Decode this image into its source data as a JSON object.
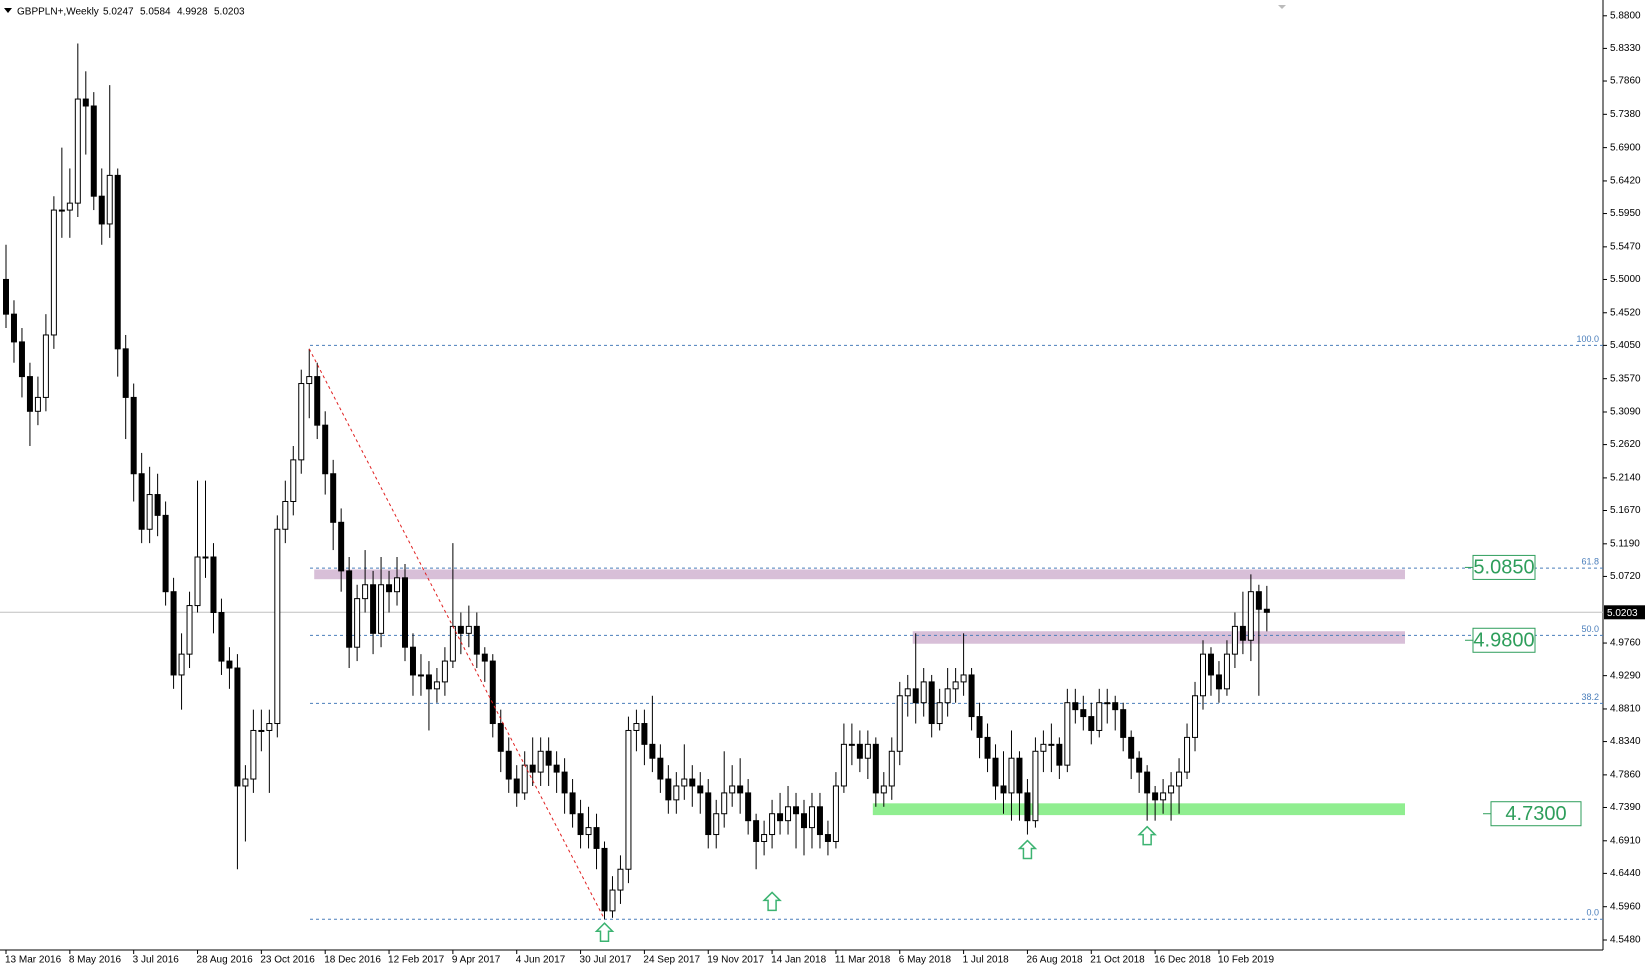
{
  "chart_data": {
    "type": "candlestick",
    "title": "GBPPLN+,Weekly",
    "categories": [
      "13 Mar 2016",
      null,
      null,
      null,
      null,
      null,
      null,
      null,
      "8 May 2016",
      null,
      null,
      null,
      null,
      null,
      null,
      null,
      "3 Jul 2016",
      null,
      null,
      null,
      null,
      null,
      null,
      null,
      "28 Aug 2016",
      null,
      null,
      null,
      null,
      null,
      null,
      null,
      "23 Oct 2016",
      null,
      null,
      null,
      null,
      null,
      null,
      null,
      "18 Dec 2016",
      null,
      null,
      null,
      null,
      null,
      null,
      null,
      "12 Feb 2017",
      null,
      null,
      null,
      null,
      null,
      null,
      null,
      "9 Apr 2017",
      null,
      null,
      null,
      null,
      null,
      null,
      null,
      "4 Jun 2017",
      null,
      null,
      null,
      null,
      null,
      null,
      null,
      "30 Jul 2017",
      null,
      null,
      null,
      null,
      null,
      null,
      null,
      "24 Sep 2017",
      null,
      null,
      null,
      null,
      null,
      null,
      null,
      "19 Nov 2017",
      null,
      null,
      null,
      null,
      null,
      null,
      null,
      "14 Jan 2018",
      null,
      null,
      null,
      null,
      null,
      null,
      null,
      "11 Mar 2018",
      null,
      null,
      null,
      null,
      null,
      null,
      null,
      "6 May 2018",
      null,
      null,
      null,
      null,
      null,
      null,
      null,
      "1 Jul 2018",
      null,
      null,
      null,
      null,
      null,
      null,
      null,
      "26 Aug 2018",
      null,
      null,
      null,
      null,
      null,
      null,
      null,
      "21 Oct 2018",
      null,
      null,
      null,
      null,
      null,
      null,
      null,
      "16 Dec 2018",
      null,
      null,
      null,
      null,
      null,
      null,
      null,
      "10 Feb 2019",
      null,
      null,
      null,
      null,
      null,
      null
    ],
    "open": [
      5.5,
      5.45,
      5.41,
      5.36,
      5.31,
      5.33,
      5.42,
      5.6,
      5.6,
      5.61,
      5.76,
      5.75,
      5.62,
      5.58,
      5.65,
      5.4,
      5.33,
      5.22,
      5.14,
      5.19,
      5.16,
      5.05,
      4.93,
      4.96,
      5.03,
      5.1,
      5.1,
      5.02,
      4.95,
      4.94,
      4.77,
      4.78,
      4.85,
      4.85,
      4.86,
      5.14,
      5.18,
      5.24,
      5.35,
      5.36,
      5.29,
      5.22,
      5.15,
      5.08,
      4.97,
      5.04,
      5.06,
      4.99,
      5.06,
      5.05,
      5.07,
      4.97,
      4.93,
      4.93,
      4.91,
      4.92,
      4.95,
      5,
      4.99,
      5,
      4.96,
      4.95,
      4.86,
      4.82,
      4.78,
      4.76,
      4.8,
      4.79,
      4.82,
      4.8,
      4.79,
      4.76,
      4.73,
      4.7,
      4.71,
      4.68,
      4.59,
      4.62,
      4.65,
      4.85,
      4.86,
      4.83,
      4.81,
      4.78,
      4.75,
      4.77,
      4.78,
      4.77,
      4.76,
      4.7,
      4.73,
      4.76,
      4.77,
      4.76,
      4.72,
      4.69,
      4.7,
      4.73,
      4.72,
      4.74,
      4.73,
      4.71,
      4.74,
      4.7,
      4.69,
      4.77,
      4.83,
      4.83,
      4.81,
      4.83,
      4.76,
      4.77,
      4.82,
      4.9,
      4.91,
      4.89,
      4.92,
      4.86,
      4.89,
      4.91,
      4.92,
      4.93,
      4.87,
      4.84,
      4.81,
      4.77,
      4.76,
      4.81,
      4.76,
      4.72,
      4.82,
      4.83,
      4.83,
      4.8,
      4.89,
      4.88,
      4.87,
      4.85,
      4.89,
      4.89,
      4.88,
      4.84,
      4.81,
      4.79,
      4.76,
      4.75,
      4.76,
      4.77,
      4.79,
      4.84,
      4.9,
      4.96,
      4.93,
      4.91,
      4.96,
      5,
      4.98,
      5.05,
      5.0247
    ],
    "high": [
      5.55,
      5.47,
      5.43,
      5.38,
      5.36,
      5.45,
      5.62,
      5.69,
      5.66,
      5.84,
      5.8,
      5.77,
      5.66,
      5.78,
      5.66,
      5.42,
      5.35,
      5.25,
      5.23,
      5.22,
      5.18,
      5.07,
      4.99,
      5.05,
      5.21,
      5.21,
      5.12,
      5.04,
      4.97,
      4.96,
      4.8,
      4.88,
      4.88,
      4.88,
      5.16,
      5.21,
      5.26,
      5.37,
      5.4,
      5.38,
      5.31,
      5.24,
      5.17,
      5.1,
      5.06,
      5.11,
      5.08,
      5.1,
      5.08,
      5.1,
      5.09,
      4.99,
      4.96,
      4.95,
      4.94,
      4.97,
      5.12,
      5.02,
      5.03,
      5.02,
      4.97,
      4.96,
      4.88,
      4.84,
      4.8,
      4.82,
      4.84,
      4.84,
      4.84,
      4.82,
      4.81,
      4.78,
      4.75,
      4.74,
      4.73,
      4.69,
      4.64,
      4.67,
      4.87,
      4.88,
      4.88,
      4.9,
      4.83,
      4.8,
      4.79,
      4.83,
      4.8,
      4.79,
      4.78,
      4.75,
      4.82,
      4.8,
      4.81,
      4.78,
      4.73,
      4.72,
      4.75,
      4.76,
      4.77,
      4.76,
      4.75,
      4.76,
      4.76,
      4.72,
      4.79,
      4.86,
      4.86,
      4.85,
      4.85,
      4.84,
      4.79,
      4.84,
      4.92,
      4.93,
      4.99,
      4.94,
      4.93,
      4.91,
      4.94,
      4.94,
      4.99,
      4.94,
      4.89,
      4.86,
      4.83,
      4.82,
      4.85,
      4.82,
      4.78,
      4.84,
      4.85,
      4.86,
      4.84,
      4.91,
      4.91,
      4.9,
      4.89,
      4.91,
      4.91,
      4.9,
      4.89,
      4.85,
      4.82,
      4.8,
      4.77,
      4.78,
      4.79,
      4.81,
      4.86,
      4.92,
      4.98,
      4.97,
      4.95,
      4.98,
      5.02,
      5.05,
      5.075,
      5.06,
      5.0584
    ],
    "low": [
      5.43,
      5.38,
      5.33,
      5.26,
      5.29,
      5.31,
      5.4,
      5.56,
      5.56,
      5.59,
      5.68,
      5.6,
      5.55,
      5.56,
      5.36,
      5.27,
      5.18,
      5.12,
      5.12,
      5.13,
      5.03,
      4.91,
      4.88,
      4.94,
      5.02,
      5.07,
      4.99,
      4.93,
      4.91,
      4.65,
      4.69,
      4.76,
      4.82,
      4.76,
      4.84,
      5.12,
      5.16,
      5.22,
      5.3,
      5.27,
      5.19,
      5.11,
      5.05,
      4.94,
      4.95,
      5.02,
      4.96,
      4.97,
      5.02,
      5.03,
      4.95,
      4.9,
      4.9,
      4.85,
      4.89,
      4.9,
      4.94,
      4.96,
      4.97,
      4.94,
      4.92,
      4.84,
      4.79,
      4.76,
      4.74,
      4.75,
      4.77,
      4.77,
      4.77,
      4.76,
      4.73,
      4.71,
      4.68,
      4.68,
      4.65,
      4.578,
      4.58,
      4.6,
      4.63,
      4.82,
      4.8,
      4.79,
      4.76,
      4.73,
      4.73,
      4.75,
      4.74,
      4.73,
      4.68,
      4.68,
      4.71,
      4.74,
      4.73,
      4.7,
      4.65,
      4.67,
      4.68,
      4.7,
      4.7,
      4.68,
      4.67,
      4.68,
      4.68,
      4.67,
      4.68,
      4.76,
      4.8,
      4.79,
      4.78,
      4.74,
      4.74,
      4.75,
      4.8,
      4.87,
      4.86,
      4.87,
      4.84,
      4.85,
      4.87,
      4.89,
      4.9,
      4.85,
      4.81,
      4.79,
      4.75,
      4.73,
      4.72,
      4.72,
      4.7,
      4.71,
      4.79,
      4.79,
      4.78,
      4.79,
      4.86,
      4.85,
      4.83,
      4.84,
      4.86,
      4.85,
      4.82,
      4.78,
      4.76,
      4.72,
      4.72,
      4.73,
      4.72,
      4.73,
      4.78,
      4.82,
      4.88,
      4.9,
      4.89,
      4.9,
      4.94,
      4.96,
      4.95,
      4.9,
      4.9928
    ],
    "close": [
      5.45,
      5.41,
      5.36,
      5.31,
      5.33,
      5.42,
      5.6,
      5.6,
      5.61,
      5.76,
      5.75,
      5.62,
      5.58,
      5.65,
      5.4,
      5.33,
      5.22,
      5.14,
      5.19,
      5.16,
      5.05,
      4.93,
      4.96,
      5.03,
      5.1,
      5.1,
      5.02,
      4.95,
      4.94,
      4.77,
      4.78,
      4.85,
      4.85,
      4.86,
      5.14,
      5.18,
      5.24,
      5.35,
      5.36,
      5.29,
      5.22,
      5.15,
      5.08,
      4.97,
      5.04,
      5.06,
      4.99,
      5.06,
      5.05,
      5.07,
      4.97,
      4.93,
      4.93,
      4.91,
      4.92,
      4.95,
      5,
      4.99,
      5,
      4.96,
      4.95,
      4.86,
      4.82,
      4.78,
      4.76,
      4.8,
      4.79,
      4.82,
      4.8,
      4.79,
      4.76,
      4.73,
      4.7,
      4.71,
      4.68,
      4.59,
      4.62,
      4.65,
      4.85,
      4.86,
      4.83,
      4.81,
      4.78,
      4.75,
      4.77,
      4.78,
      4.77,
      4.76,
      4.7,
      4.73,
      4.76,
      4.77,
      4.76,
      4.72,
      4.69,
      4.7,
      4.73,
      4.72,
      4.74,
      4.73,
      4.71,
      4.74,
      4.7,
      4.69,
      4.77,
      4.83,
      4.83,
      4.81,
      4.83,
      4.76,
      4.77,
      4.82,
      4.9,
      4.91,
      4.89,
      4.92,
      4.86,
      4.89,
      4.91,
      4.92,
      4.93,
      4.87,
      4.84,
      4.81,
      4.77,
      4.76,
      4.81,
      4.76,
      4.72,
      4.82,
      4.83,
      4.83,
      4.8,
      4.89,
      4.88,
      4.87,
      4.85,
      4.89,
      4.89,
      4.88,
      4.84,
      4.81,
      4.79,
      4.76,
      4.75,
      4.76,
      4.77,
      4.79,
      4.84,
      4.9,
      4.96,
      4.93,
      4.91,
      4.96,
      5,
      4.98,
      5.05,
      5.0247,
      5.0203
    ],
    "up_color": "#ffffff",
    "down_color": "#000000",
    "ylim": [
      4.5336,
      5.897
    ],
    "yticks": [
      {
        "value": 5.88,
        "label": "5.8800"
      },
      {
        "value": 5.833,
        "label": "5.8330"
      },
      {
        "value": 5.786,
        "label": "5.7860"
      },
      {
        "value": 5.738,
        "label": "5.7380"
      },
      {
        "value": 5.69,
        "label": "5.6900"
      },
      {
        "value": 5.642,
        "label": "5.6420"
      },
      {
        "value": 5.595,
        "label": "5.5950"
      },
      {
        "value": 5.547,
        "label": "5.5470"
      },
      {
        "value": 5.5,
        "label": "5.5000"
      },
      {
        "value": 5.452,
        "label": "5.4520"
      },
      {
        "value": 5.405,
        "label": "5.4050"
      },
      {
        "value": 5.357,
        "label": "5.3570"
      },
      {
        "value": 5.309,
        "label": "5.3090"
      },
      {
        "value": 5.262,
        "label": "5.2620"
      },
      {
        "value": 5.214,
        "label": "5.2140"
      },
      {
        "value": 5.167,
        "label": "5.1670"
      },
      {
        "value": 5.119,
        "label": "5.1190"
      },
      {
        "value": 5.072,
        "label": "5.0720"
      },
      {
        "value": 4.976,
        "label": "4.9760"
      },
      {
        "value": 4.929,
        "label": "4.9290"
      },
      {
        "value": 4.881,
        "label": "4.8810"
      },
      {
        "value": 4.834,
        "label": "4.8340"
      },
      {
        "value": 4.786,
        "label": "4.7860"
      },
      {
        "value": 4.739,
        "label": "4.7390"
      },
      {
        "value": 4.691,
        "label": "4.6910"
      },
      {
        "value": 4.644,
        "label": "4.6440"
      },
      {
        "value": 4.596,
        "label": "4.5960"
      },
      {
        "value": 4.548,
        "label": "4.5480"
      }
    ],
    "fib_color": "#4a7ebb",
    "fib_levels": [
      {
        "level": "100.0",
        "price": 5.405
      },
      {
        "level": "61.8",
        "price": 5.084
      },
      {
        "level": "50.0",
        "price": 4.987
      },
      {
        "level": "38.2",
        "price": 4.889
      },
      {
        "level": "0.0",
        "price": 4.578
      }
    ],
    "trendline_color": "#e02020",
    "zones": [
      {
        "top": 5.082,
        "bottom": 5.068,
        "color": "#d8bfd8",
        "label": {
          "value": 5.085,
          "label": "5.0850"
        }
      },
      {
        "top": 4.993,
        "bottom": 4.975,
        "color": "#d8bfd8",
        "label": {
          "value": 4.98,
          "label": "4.9800"
        }
      },
      {
        "top": 4.745,
        "bottom": 4.728,
        "color": "#90ee90",
        "label": {
          "value": 4.73,
          "label": "4.7300"
        }
      }
    ],
    "zone_label_color": "#2e9e5b"
  }
}
